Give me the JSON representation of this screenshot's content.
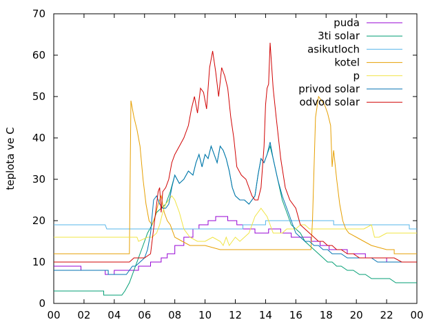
{
  "chart_data": {
    "type": "line",
    "ylabel": "teplota ve C",
    "xlabel": "",
    "title": "",
    "x_tick_labels": [
      "00",
      "02",
      "04",
      "06",
      "08",
      "10",
      "12",
      "14",
      "16",
      "18",
      "20",
      "22",
      "00"
    ],
    "xlim": [
      0,
      24
    ],
    "ylim": [
      0,
      70
    ],
    "y_ticks": [
      0,
      10,
      20,
      30,
      40,
      50,
      60,
      70
    ],
    "grid": false,
    "legend_position": "top-right",
    "series": [
      {
        "name": "puda",
        "color": "#9400d3",
        "x": [
          0,
          1.8,
          1.8,
          2.7,
          2.7,
          3.4,
          3.4,
          4.0,
          4.0,
          5.0,
          5.0,
          5.6,
          5.6,
          6.4,
          6.4,
          6.8,
          6.8,
          7.1,
          7.1,
          7.5,
          7.5,
          8.0,
          8.0,
          8.6,
          8.6,
          9.2,
          9.2,
          9.6,
          9.6,
          10.2,
          10.2,
          10.7,
          10.7,
          11.5,
          11.5,
          12.1,
          12.1,
          12.5,
          12.5,
          13.3,
          13.3,
          14.2,
          14.2,
          15.0,
          15.0,
          15.7,
          15.7,
          16.4,
          16.4,
          17.0,
          17.0,
          17.6,
          17.6,
          18.2,
          18.2,
          18.8,
          18.8,
          19.4,
          19.4,
          20.0,
          20.0,
          20.6,
          20.6,
          21.2,
          21.2,
          22.0,
          22.0,
          23.2,
          23.2,
          24
        ],
        "y": [
          9,
          9,
          8,
          8,
          8,
          8,
          7,
          7,
          8,
          8,
          8,
          8,
          9,
          9,
          10,
          10,
          10,
          10,
          11,
          11,
          12,
          12,
          14,
          14,
          16,
          16,
          18,
          18,
          19,
          19,
          20,
          20,
          21,
          21,
          20,
          20,
          19,
          19,
          18,
          18,
          17,
          17,
          18,
          18,
          17,
          17,
          16,
          16,
          16,
          16,
          15,
          15,
          14,
          14,
          13,
          13,
          13,
          13,
          12,
          12,
          12,
          12,
          11,
          11,
          11,
          11,
          10,
          10,
          10,
          10
        ]
      },
      {
        "name": "3ti solar",
        "color": "#009e73",
        "x": [
          0,
          3.3,
          3.3,
          4.5,
          4.7,
          5.0,
          5.3,
          5.6,
          5.9,
          6.2,
          6.5,
          6.8,
          7.1,
          7.4,
          7.7,
          8.0,
          8.3,
          8.6,
          8.9,
          9.2,
          9.4,
          9.6,
          9.8,
          10.0,
          10.2,
          10.4,
          10.6,
          10.8,
          11.0,
          11.2,
          11.4,
          11.6,
          11.8,
          12.0,
          12.3,
          12.6,
          12.9,
          13.1,
          13.3,
          13.5,
          13.7,
          13.9,
          14.1,
          14.3,
          14.5,
          14.8,
          15.1,
          15.4,
          15.7,
          16.0,
          16.3,
          16.6,
          16.9,
          17.2,
          17.5,
          17.8,
          18.1,
          18.4,
          18.7,
          19.0,
          19.4,
          19.8,
          20.2,
          20.6,
          21.0,
          21.4,
          21.8,
          22.2,
          22.6,
          23.0,
          23.4,
          24
        ],
        "y": [
          3,
          3,
          2,
          2,
          3,
          5,
          8,
          11,
          14,
          17,
          19,
          22,
          23,
          24,
          27,
          31,
          29,
          30,
          32,
          31,
          34,
          36,
          33,
          36,
          35,
          38,
          36,
          34,
          38,
          37,
          35,
          32,
          28,
          26,
          25,
          25,
          24,
          25,
          26,
          31,
          35,
          34,
          36,
          38,
          35,
          30,
          25,
          22,
          19,
          18,
          17,
          15,
          14,
          13,
          12,
          11,
          10,
          10,
          9,
          9,
          8,
          8,
          7,
          7,
          6,
          6,
          6,
          6,
          5,
          5,
          5,
          5
        ]
      },
      {
        "name": "asikutloch",
        "color": "#56b4e9",
        "x": [
          0,
          3.4,
          3.5,
          7.0,
          7.0,
          10.0,
          10.0,
          12.5,
          12.5,
          14.0,
          14.0,
          16.0,
          16.0,
          18.5,
          18.5,
          22.0,
          22.0,
          23.5,
          23.5,
          24
        ],
        "y": [
          19,
          19,
          18,
          18,
          18,
          18,
          18,
          18,
          19,
          19,
          20,
          20,
          20,
          20,
          19,
          19,
          19,
          19,
          18,
          18
        ]
      },
      {
        "name": "kotel",
        "color": "#e69f00",
        "x": [
          0,
          5.0,
          5.0,
          5.1,
          5.3,
          5.5,
          5.7,
          5.9,
          6.1,
          6.3,
          6.5,
          6.7,
          6.9,
          7.1,
          7.3,
          7.5,
          7.7,
          8.0,
          8.5,
          9.0,
          9.5,
          10.0,
          11.0,
          12.0,
          13.0,
          14.0,
          15.0,
          16.0,
          16.5,
          16.8,
          17.0,
          17.1,
          17.3,
          17.5,
          17.7,
          17.9,
          18.1,
          18.3,
          18.4,
          18.5,
          18.7,
          18.9,
          19.1,
          19.3,
          19.5,
          20.0,
          20.5,
          21.0,
          22.0,
          22.5,
          22.5,
          24
        ],
        "y": [
          12,
          12,
          12,
          49,
          45,
          42,
          38,
          30,
          24,
          20,
          19,
          21,
          24,
          26,
          22,
          20,
          19,
          16,
          15,
          14,
          14,
          14,
          13,
          13,
          13,
          13,
          13,
          13,
          13,
          13,
          13,
          20,
          45,
          50,
          49,
          48,
          46,
          43,
          33,
          37,
          30,
          24,
          20,
          18,
          17,
          16,
          15,
          14,
          13,
          13,
          12,
          12
        ]
      },
      {
        "name": "p",
        "color": "#f0e442",
        "x": [
          0,
          1.5,
          1.5,
          5.5,
          5.6,
          6.2,
          6.5,
          6.8,
          7.0,
          7.2,
          7.4,
          7.6,
          7.8,
          8.0,
          8.3,
          8.6,
          9.0,
          9.5,
          10.0,
          10.5,
          11.0,
          11.2,
          11.4,
          11.6,
          11.8,
          12.0,
          12.3,
          12.6,
          12.9,
          13.1,
          13.3,
          13.5,
          13.7,
          13.9,
          14.1,
          14.3,
          14.5,
          14.8,
          15.1,
          15.4,
          15.7,
          16.0,
          16.3,
          16.6,
          16.9,
          17.2,
          17.5,
          17.8,
          18.1,
          18.4,
          18.7,
          19.0,
          19.5,
          20.0,
          20.5,
          21.0,
          21.2,
          21.5,
          22.0,
          22.5,
          23.0,
          23.5,
          24
        ],
        "y": [
          16,
          16,
          16,
          16,
          15,
          16,
          16,
          17,
          19,
          22,
          24,
          25,
          26,
          25,
          22,
          18,
          16,
          15,
          15,
          16,
          15,
          14,
          16,
          14,
          15,
          16,
          15,
          16,
          17,
          19,
          21,
          22,
          23,
          22,
          21,
          19,
          17,
          17,
          17,
          18,
          18,
          18,
          19,
          19,
          18,
          18,
          18,
          18,
          18,
          18,
          18,
          18,
          18,
          18,
          18,
          19,
          16,
          16,
          17,
          17,
          17,
          17,
          17
        ]
      },
      {
        "name": "privod solar",
        "color": "#0072b2",
        "x": [
          0,
          3.6,
          3.6,
          4.8,
          5.0,
          5.2,
          5.4,
          5.7,
          6.0,
          6.2,
          6.4,
          6.6,
          6.8,
          7.0,
          7.2,
          7.4,
          7.6,
          7.8,
          8.0,
          8.3,
          8.6,
          8.9,
          9.2,
          9.4,
          9.6,
          9.8,
          10.0,
          10.2,
          10.4,
          10.6,
          10.8,
          11.0,
          11.2,
          11.4,
          11.6,
          11.8,
          12.0,
          12.3,
          12.6,
          12.9,
          13.1,
          13.3,
          13.5,
          13.7,
          13.9,
          14.1,
          14.3,
          14.5,
          14.8,
          15.1,
          15.4,
          15.7,
          16.0,
          16.3,
          16.6,
          16.9,
          17.2,
          17.5,
          17.8,
          18.1,
          18.4,
          18.7,
          19.0,
          19.4,
          19.8,
          20.2,
          20.6,
          21.0,
          21.4,
          21.8,
          22.2,
          22.6,
          23.0,
          23.4,
          24
        ],
        "y": [
          8,
          8,
          7,
          7,
          8,
          9,
          9,
          10,
          11,
          13,
          17,
          25,
          26,
          24,
          23,
          23,
          24,
          28,
          31,
          29,
          30,
          32,
          31,
          34,
          36,
          33,
          36,
          35,
          38,
          36,
          34,
          38,
          37,
          35,
          32,
          28,
          26,
          25,
          25,
          24,
          25,
          26,
          31,
          35,
          34,
          36,
          39,
          35,
          30,
          26,
          23,
          20,
          17,
          16,
          15,
          15,
          14,
          14,
          13,
          13,
          12,
          12,
          12,
          11,
          11,
          11,
          11,
          11,
          10,
          10,
          10,
          10,
          10,
          10,
          10
        ]
      },
      {
        "name": "odvod solar",
        "color": "#d00000",
        "x": [
          0,
          5.0,
          5.3,
          5.6,
          6.0,
          6.4,
          6.7,
          6.9,
          7.0,
          7.1,
          7.2,
          7.4,
          7.6,
          7.8,
          8.0,
          8.3,
          8.6,
          8.9,
          9.1,
          9.3,
          9.5,
          9.7,
          9.9,
          10.1,
          10.3,
          10.5,
          10.7,
          10.9,
          11.1,
          11.3,
          11.5,
          11.7,
          11.9,
          12.1,
          12.4,
          12.7,
          12.9,
          13.1,
          13.3,
          13.5,
          13.7,
          13.9,
          14.0,
          14.1,
          14.2,
          14.3,
          14.5,
          14.7,
          15.0,
          15.3,
          15.6,
          16.0,
          16.3,
          16.6,
          16.9,
          17.2,
          17.5,
          17.8,
          18.1,
          18.4,
          18.7,
          19.0,
          19.4,
          19.8,
          20.2,
          20.6,
          21.0,
          21.5,
          22.0,
          22.5,
          23.0,
          24
        ],
        "y": [
          10,
          10,
          11,
          11,
          11,
          12,
          21,
          27,
          28,
          22,
          27,
          28,
          30,
          34,
          36,
          38,
          40,
          43,
          47,
          50,
          46,
          52,
          51,
          47,
          57,
          61,
          56,
          50,
          57,
          55,
          52,
          45,
          40,
          33,
          31,
          30,
          28,
          26,
          25,
          25,
          28,
          38,
          48,
          52,
          53,
          63,
          52,
          45,
          35,
          28,
          25,
          23,
          19,
          18,
          17,
          16,
          15,
          15,
          14,
          14,
          13,
          13,
          12,
          12,
          11,
          11,
          11,
          11,
          11,
          11,
          10,
          10
        ]
      }
    ]
  }
}
